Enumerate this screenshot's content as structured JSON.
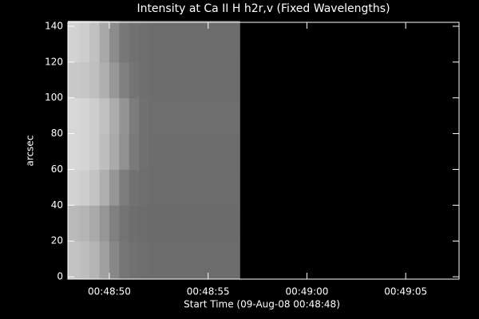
{
  "chart_data": {
    "type": "heatmap",
    "title": "Intensity at Ca II H h2r,v (Fixed Wavelengths)",
    "x_label": "Start Time (09-Aug-08 00:48:48)",
    "y_label": "arcsec",
    "x_edges": [
      -0.1,
      0.5,
      1.0,
      1.5,
      2.0,
      2.5,
      3.0,
      3.5,
      4.0,
      8.6
    ],
    "y_edges": [
      -1,
      20,
      40,
      60,
      80,
      100,
      120,
      143
    ],
    "values": [
      [
        195,
        190,
        180,
        160,
        135,
        118,
        112,
        110,
        108
      ],
      [
        185,
        180,
        170,
        150,
        128,
        115,
        110,
        108,
        107
      ],
      [
        210,
        205,
        195,
        175,
        150,
        125,
        114,
        110,
        108
      ],
      [
        215,
        212,
        205,
        190,
        170,
        145,
        122,
        112,
        109
      ],
      [
        215,
        212,
        205,
        192,
        172,
        148,
        124,
        113,
        110
      ],
      [
        200,
        198,
        190,
        175,
        152,
        128,
        116,
        111,
        109
      ],
      [
        210,
        205,
        192,
        168,
        140,
        120,
        113,
        110,
        108
      ]
    ],
    "zlim": [
      0,
      255
    ],
    "xlim": [
      -0.1,
      19.7
    ],
    "ylim": [
      -1.3,
      142.2
    ],
    "xticks": [
      {
        "value": 2,
        "label": "00:48:50"
      },
      {
        "value": 7,
        "label": "00:48:55"
      },
      {
        "value": 12,
        "label": "00:49:00"
      },
      {
        "value": 17,
        "label": "00:49:05"
      }
    ],
    "yticks": [
      0,
      20,
      40,
      60,
      80,
      100,
      120,
      140
    ]
  }
}
